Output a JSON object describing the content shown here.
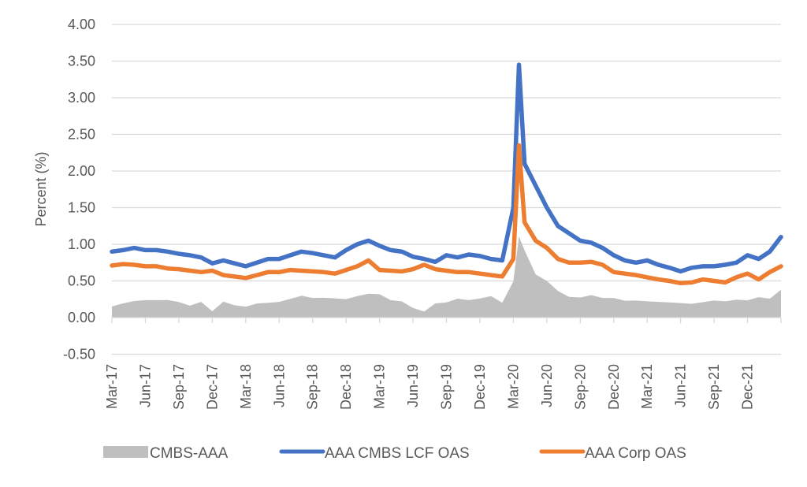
{
  "chart_data": {
    "type": "line",
    "title": "",
    "xlabel": "",
    "ylabel": "Percent (%)",
    "ylim": [
      -0.5,
      4.0
    ],
    "yticks": [
      "4.00",
      "3.50",
      "3.00",
      "2.50",
      "2.00",
      "1.50",
      "1.00",
      "0.50",
      "0.00",
      "-0.50"
    ],
    "ytick_values": [
      4.0,
      3.5,
      3.0,
      2.5,
      2.0,
      1.5,
      1.0,
      0.5,
      0.0,
      -0.5
    ],
    "grid": true,
    "legend_position": "bottom",
    "x_tick_labels": [
      "Mar-17",
      "Jun-17",
      "Sep-17",
      "Dec-17",
      "Mar-18",
      "Jun-18",
      "Sep-18",
      "Dec-18",
      "Mar-19",
      "Jun-19",
      "Sep-19",
      "Dec-19",
      "Mar-20",
      "Jun-20",
      "Sep-20",
      "Dec-20",
      "Mar-21",
      "Jun-21",
      "Sep-21",
      "Dec-21"
    ],
    "x_months_from_mar17": [
      0,
      1,
      2,
      3,
      4,
      5,
      6,
      7,
      8,
      9,
      10,
      11,
      12,
      13,
      14,
      15,
      16,
      17,
      18,
      19,
      20,
      21,
      22,
      23,
      24,
      25,
      26,
      27,
      28,
      29,
      30,
      31,
      32,
      33,
      34,
      35,
      36,
      36.5,
      37,
      38,
      39,
      40,
      41,
      42,
      43,
      44,
      45,
      46,
      47,
      48,
      49,
      50,
      51,
      52,
      53,
      54,
      55,
      56,
      57,
      58,
      59,
      60
    ],
    "series": [
      {
        "name": "CMBS-AAA",
        "kind": "area",
        "color": "#BFBFBF",
        "values": [
          0.17,
          0.2,
          0.22,
          0.22,
          0.25,
          0.24,
          0.2,
          0.18,
          0.22,
          0.08,
          0.2,
          0.18,
          0.15,
          0.18,
          0.22,
          0.22,
          0.25,
          0.28,
          0.28,
          0.27,
          0.25,
          0.27,
          0.3,
          0.32,
          0.3,
          0.25,
          0.22,
          0.12,
          0.1,
          0.2,
          0.2,
          0.24,
          0.25,
          0.26,
          0.28,
          0.22,
          0.5,
          1.1,
          0.9,
          0.6,
          0.5,
          0.35,
          0.3,
          0.28,
          0.3,
          0.25,
          0.28,
          0.23,
          0.22,
          0.24,
          0.22,
          0.2,
          0.18,
          0.2,
          0.21,
          0.22,
          0.24,
          0.25,
          0.23,
          0.26,
          0.27,
          0.38
        ]
      },
      {
        "name": "AAA CMBS LCF OAS",
        "kind": "line",
        "color": "#4472C4",
        "values": [
          0.9,
          0.92,
          0.95,
          0.92,
          0.92,
          0.9,
          0.87,
          0.85,
          0.82,
          0.74,
          0.78,
          0.74,
          0.7,
          0.75,
          0.8,
          0.8,
          0.85,
          0.9,
          0.88,
          0.85,
          0.82,
          0.92,
          1.0,
          1.05,
          0.98,
          0.92,
          0.9,
          0.83,
          0.8,
          0.76,
          0.85,
          0.82,
          0.86,
          0.84,
          0.8,
          0.78,
          1.5,
          3.45,
          2.1,
          1.8,
          1.5,
          1.25,
          1.15,
          1.05,
          1.02,
          0.95,
          0.85,
          0.78,
          0.75,
          0.78,
          0.72,
          0.68,
          0.63,
          0.68,
          0.7,
          0.7,
          0.72,
          0.75,
          0.85,
          0.8,
          0.9,
          1.1
        ]
      },
      {
        "name": "AAA Corp OAS",
        "kind": "line",
        "color": "#ED7D31",
        "values": [
          0.71,
          0.73,
          0.72,
          0.7,
          0.7,
          0.67,
          0.66,
          0.64,
          0.62,
          0.64,
          0.58,
          0.56,
          0.54,
          0.58,
          0.62,
          0.62,
          0.65,
          0.64,
          0.63,
          0.62,
          0.6,
          0.65,
          0.7,
          0.78,
          0.65,
          0.64,
          0.63,
          0.66,
          0.72,
          0.66,
          0.64,
          0.62,
          0.62,
          0.6,
          0.58,
          0.56,
          0.8,
          2.35,
          1.3,
          1.05,
          0.95,
          0.8,
          0.75,
          0.75,
          0.76,
          0.72,
          0.62,
          0.6,
          0.58,
          0.55,
          0.52,
          0.5,
          0.47,
          0.48,
          0.52,
          0.5,
          0.48,
          0.55,
          0.6,
          0.52,
          0.62,
          0.7
        ]
      }
    ]
  },
  "legend": {
    "items": [
      "CMBS-AAA",
      "AAA CMBS LCF OAS",
      "AAA Corp OAS"
    ]
  }
}
